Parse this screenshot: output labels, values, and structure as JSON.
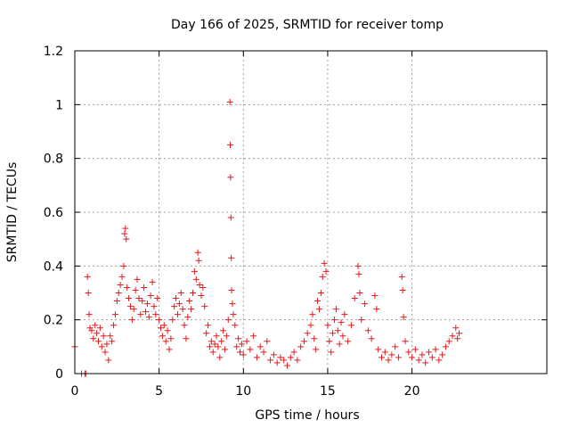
{
  "chart_data": {
    "type": "scatter",
    "title": "Day 166 of 2025, SRMTID for receiver tomp",
    "xlabel": "GPS time / hours",
    "ylabel": "SRMTID / TECUs",
    "xlim": [
      0,
      28
    ],
    "ylim": [
      0,
      1.2
    ],
    "xticks": [
      0,
      5,
      10,
      15,
      20
    ],
    "xtick_labels": [
      "0",
      "5",
      "10",
      "15",
      "20"
    ],
    "yticks": [
      0,
      0.2,
      0.4,
      0.6,
      0.8,
      1.0,
      1.2
    ],
    "ytick_labels": [
      "0",
      "0.2",
      "0.4",
      "0.6",
      "0.8",
      "1",
      "1.2"
    ],
    "grid": true,
    "marker": "+",
    "color": "#e41a1c",
    "series": [
      {
        "name": "SRMTID",
        "points": [
          [
            0.0,
            0.1
          ],
          [
            0.4,
            0.0
          ],
          [
            0.6,
            0.0
          ],
          [
            0.65,
            0.0
          ],
          [
            0.75,
            0.36
          ],
          [
            0.8,
            0.3
          ],
          [
            0.85,
            0.22
          ],
          [
            0.9,
            0.17
          ],
          [
            1.0,
            0.16
          ],
          [
            1.1,
            0.13
          ],
          [
            1.2,
            0.18
          ],
          [
            1.3,
            0.15
          ],
          [
            1.4,
            0.12
          ],
          [
            1.5,
            0.17
          ],
          [
            1.6,
            0.1
          ],
          [
            1.7,
            0.14
          ],
          [
            1.8,
            0.08
          ],
          [
            1.9,
            0.11
          ],
          [
            2.0,
            0.05
          ],
          [
            2.1,
            0.14
          ],
          [
            2.2,
            0.12
          ],
          [
            2.3,
            0.18
          ],
          [
            2.4,
            0.22
          ],
          [
            2.5,
            0.27
          ],
          [
            2.6,
            0.3
          ],
          [
            2.7,
            0.33
          ],
          [
            2.8,
            0.36
          ],
          [
            2.9,
            0.4
          ],
          [
            2.95,
            0.52
          ],
          [
            3.0,
            0.54
          ],
          [
            3.05,
            0.5
          ],
          [
            3.1,
            0.32
          ],
          [
            3.2,
            0.28
          ],
          [
            3.3,
            0.25
          ],
          [
            3.4,
            0.2
          ],
          [
            3.5,
            0.24
          ],
          [
            3.6,
            0.31
          ],
          [
            3.7,
            0.35
          ],
          [
            3.8,
            0.28
          ],
          [
            3.9,
            0.22
          ],
          [
            4.0,
            0.27
          ],
          [
            4.1,
            0.32
          ],
          [
            4.2,
            0.23
          ],
          [
            4.3,
            0.26
          ],
          [
            4.4,
            0.21
          ],
          [
            4.5,
            0.29
          ],
          [
            4.6,
            0.34
          ],
          [
            4.7,
            0.25
          ],
          [
            4.8,
            0.22
          ],
          [
            4.9,
            0.28
          ],
          [
            5.0,
            0.2
          ],
          [
            5.1,
            0.17
          ],
          [
            5.2,
            0.14
          ],
          [
            5.3,
            0.18
          ],
          [
            5.4,
            0.12
          ],
          [
            5.5,
            0.16
          ],
          [
            5.6,
            0.09
          ],
          [
            5.7,
            0.13
          ],
          [
            5.8,
            0.2
          ],
          [
            5.9,
            0.25
          ],
          [
            6.0,
            0.28
          ],
          [
            6.1,
            0.22
          ],
          [
            6.2,
            0.26
          ],
          [
            6.3,
            0.3
          ],
          [
            6.4,
            0.24
          ],
          [
            6.5,
            0.18
          ],
          [
            6.6,
            0.13
          ],
          [
            6.7,
            0.21
          ],
          [
            6.8,
            0.27
          ],
          [
            6.9,
            0.24
          ],
          [
            7.0,
            0.3
          ],
          [
            7.1,
            0.38
          ],
          [
            7.2,
            0.35
          ],
          [
            7.3,
            0.45
          ],
          [
            7.35,
            0.42
          ],
          [
            7.4,
            0.33
          ],
          [
            7.5,
            0.29
          ],
          [
            7.6,
            0.32
          ],
          [
            7.7,
            0.25
          ],
          [
            7.8,
            0.15
          ],
          [
            7.9,
            0.18
          ],
          [
            8.0,
            0.1
          ],
          [
            8.1,
            0.12
          ],
          [
            8.2,
            0.08
          ],
          [
            8.3,
            0.11
          ],
          [
            8.4,
            0.14
          ],
          [
            8.5,
            0.1
          ],
          [
            8.6,
            0.06
          ],
          [
            8.7,
            0.12
          ],
          [
            8.8,
            0.16
          ],
          [
            8.9,
            0.09
          ],
          [
            9.0,
            0.14
          ],
          [
            9.1,
            0.2
          ],
          [
            9.2,
            1.01
          ],
          [
            9.22,
            0.85
          ],
          [
            9.24,
            0.73
          ],
          [
            9.26,
            0.58
          ],
          [
            9.28,
            0.43
          ],
          [
            9.3,
            0.31
          ],
          [
            9.35,
            0.26
          ],
          [
            9.4,
            0.22
          ],
          [
            9.5,
            0.18
          ],
          [
            9.6,
            0.1
          ],
          [
            9.7,
            0.13
          ],
          [
            9.8,
            0.08
          ],
          [
            9.9,
            0.11
          ],
          [
            10.0,
            0.07
          ],
          [
            10.2,
            0.12
          ],
          [
            10.4,
            0.09
          ],
          [
            10.6,
            0.14
          ],
          [
            10.8,
            0.06
          ],
          [
            11.0,
            0.1
          ],
          [
            11.2,
            0.08
          ],
          [
            11.4,
            0.12
          ],
          [
            11.6,
            0.05
          ],
          [
            11.8,
            0.07
          ],
          [
            12.0,
            0.04
          ],
          [
            12.2,
            0.06
          ],
          [
            12.4,
            0.05
          ],
          [
            12.6,
            0.03
          ],
          [
            12.8,
            0.06
          ],
          [
            13.0,
            0.08
          ],
          [
            13.2,
            0.05
          ],
          [
            13.4,
            0.1
          ],
          [
            13.6,
            0.12
          ],
          [
            13.8,
            0.15
          ],
          [
            14.0,
            0.18
          ],
          [
            14.1,
            0.22
          ],
          [
            14.2,
            0.13
          ],
          [
            14.3,
            0.09
          ],
          [
            14.4,
            0.27
          ],
          [
            14.5,
            0.24
          ],
          [
            14.6,
            0.3
          ],
          [
            14.7,
            0.36
          ],
          [
            14.8,
            0.41
          ],
          [
            14.9,
            0.38
          ],
          [
            15.0,
            0.18
          ],
          [
            15.1,
            0.12
          ],
          [
            15.2,
            0.08
          ],
          [
            15.3,
            0.15
          ],
          [
            15.4,
            0.2
          ],
          [
            15.5,
            0.24
          ],
          [
            15.6,
            0.16
          ],
          [
            15.7,
            0.11
          ],
          [
            15.8,
            0.19
          ],
          [
            15.9,
            0.14
          ],
          [
            16.0,
            0.22
          ],
          [
            16.2,
            0.12
          ],
          [
            16.4,
            0.18
          ],
          [
            16.6,
            0.28
          ],
          [
            16.8,
            0.4
          ],
          [
            16.85,
            0.37
          ],
          [
            16.9,
            0.3
          ],
          [
            17.0,
            0.2
          ],
          [
            17.2,
            0.26
          ],
          [
            17.4,
            0.16
          ],
          [
            17.6,
            0.13
          ],
          [
            17.8,
            0.29
          ],
          [
            17.9,
            0.24
          ],
          [
            18.0,
            0.09
          ],
          [
            18.2,
            0.06
          ],
          [
            18.4,
            0.08
          ],
          [
            18.6,
            0.05
          ],
          [
            18.8,
            0.07
          ],
          [
            19.0,
            0.1
          ],
          [
            19.2,
            0.06
          ],
          [
            19.4,
            0.36
          ],
          [
            19.45,
            0.31
          ],
          [
            19.5,
            0.21
          ],
          [
            19.6,
            0.12
          ],
          [
            19.8,
            0.08
          ],
          [
            20.0,
            0.06
          ],
          [
            20.2,
            0.09
          ],
          [
            20.4,
            0.05
          ],
          [
            20.6,
            0.07
          ],
          [
            20.8,
            0.04
          ],
          [
            21.0,
            0.08
          ],
          [
            21.2,
            0.06
          ],
          [
            21.4,
            0.09
          ],
          [
            21.6,
            0.05
          ],
          [
            21.8,
            0.07
          ],
          [
            22.0,
            0.1
          ],
          [
            22.2,
            0.12
          ],
          [
            22.4,
            0.14
          ],
          [
            22.6,
            0.17
          ],
          [
            22.7,
            0.13
          ],
          [
            22.8,
            0.15
          ]
        ]
      }
    ]
  }
}
